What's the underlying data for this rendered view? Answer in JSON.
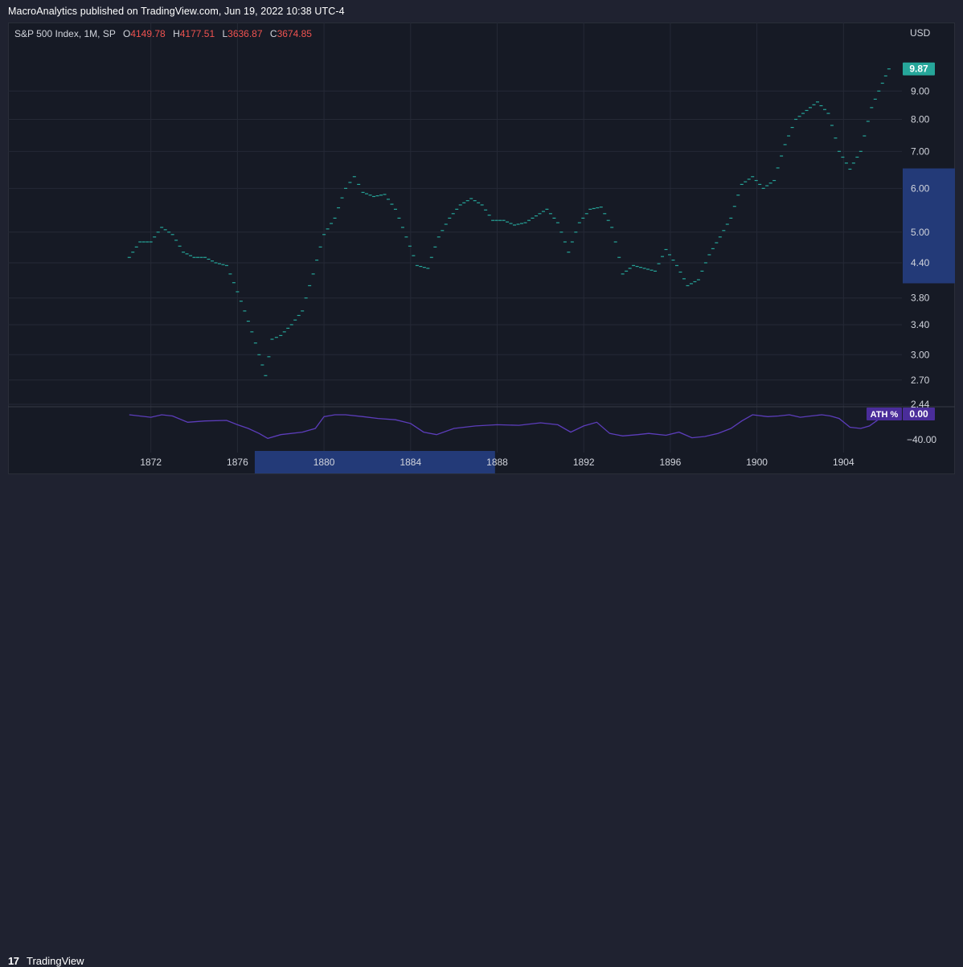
{
  "header": {
    "publish_text": "MacroAnalytics published on TradingView.com, Jun 19, 2022 10:38 UTC-4"
  },
  "legend": {
    "symbol": "S&P 500 Index, 1M, SP",
    "open_label": "O",
    "open_value": "4149.78",
    "high_label": "H",
    "high_value": "4177.51",
    "low_label": "L",
    "low_value": "3636.87",
    "close_label": "C",
    "close_value": "3674.85"
  },
  "footer": {
    "brand_logo": "17",
    "brand_name": "TradingView"
  },
  "colors": {
    "background": "#161a25",
    "price": "#26a69a",
    "ath": "#5c3dbb",
    "grid": "#252936",
    "text": "#d1d4dc",
    "price_label_bg": "#26a69a",
    "ath_label_bg": "#4a2d9a",
    "range_highlight": "#233a78"
  },
  "chart_data": [
    {
      "type": "line",
      "style": "dashes",
      "currency": "USD",
      "scale": "log",
      "last_value_label": "9.87",
      "y_ticks": [
        "2.44",
        "2.70",
        "3.00",
        "3.40",
        "3.80",
        "4.40",
        "5.00",
        "6.00",
        "7.00",
        "8.00",
        "9.00"
      ],
      "ylim": [
        2.44,
        10.3
      ],
      "x_ticks": [
        "1872",
        "1876",
        "1880",
        "1884",
        "1888",
        "1892",
        "1896",
        "1900",
        "1904"
      ],
      "xlim": [
        1865.4,
        1906.7
      ],
      "x_highlight": [
        1876.8,
        1887.9
      ],
      "y_highlight": [
        4.04,
        6.52
      ],
      "series": [
        {
          "x": [
            1871.0,
            1871.5,
            1872.0,
            1872.5,
            1873.0,
            1873.5,
            1874.0,
            1874.5,
            1875.0,
            1875.5,
            1876.0,
            1876.5,
            1877.0,
            1877.3,
            1877.6,
            1878.0,
            1878.5,
            1879.0,
            1879.5,
            1880.0,
            1880.5,
            1881.0,
            1881.4,
            1881.8,
            1882.3,
            1882.8,
            1883.3,
            1883.8,
            1884.3,
            1884.8,
            1885.3,
            1885.8,
            1886.3,
            1886.8,
            1887.3,
            1887.8,
            1888.3,
            1888.8,
            1889.3,
            1889.8,
            1890.3,
            1890.8,
            1891.3,
            1891.8,
            1892.3,
            1892.8,
            1893.3,
            1893.8,
            1894.3,
            1894.8,
            1895.3,
            1895.8,
            1896.3,
            1896.8,
            1897.3,
            1897.8,
            1898.3,
            1898.8,
            1899.3,
            1899.8,
            1900.3,
            1900.8,
            1901.3,
            1901.8,
            1902.3,
            1902.8,
            1903.3,
            1903.8,
            1904.3,
            1904.8,
            1905.3,
            1905.8,
            1906.1
          ],
          "y": [
            4.5,
            4.8,
            4.8,
            5.1,
            4.95,
            4.6,
            4.5,
            4.5,
            4.4,
            4.35,
            3.9,
            3.45,
            3.0,
            2.75,
            3.2,
            3.25,
            3.4,
            3.6,
            4.2,
            4.95,
            5.3,
            6.0,
            6.3,
            5.9,
            5.8,
            5.85,
            5.5,
            4.9,
            4.35,
            4.3,
            4.9,
            5.3,
            5.6,
            5.75,
            5.6,
            5.25,
            5.25,
            5.15,
            5.2,
            5.35,
            5.5,
            5.2,
            4.6,
            5.2,
            5.5,
            5.55,
            5.1,
            4.2,
            4.35,
            4.3,
            4.25,
            4.65,
            4.35,
            4.0,
            4.1,
            4.55,
            4.9,
            5.3,
            6.1,
            6.3,
            6.0,
            6.2,
            7.2,
            8.0,
            8.3,
            8.6,
            8.2,
            7.0,
            6.5,
            7.0,
            8.4,
            9.3,
            9.87
          ]
        }
      ]
    },
    {
      "type": "area",
      "name": "ATH %",
      "value_label": "0.00",
      "y_ticks": [
        "0.00",
        "−40.00"
      ],
      "ylim": [
        -44,
        0
      ],
      "series": [
        {
          "x": [
            1871.0,
            1872.0,
            1872.5,
            1873.0,
            1873.7,
            1874.5,
            1875.5,
            1876.0,
            1876.5,
            1877.0,
            1877.4,
            1878.0,
            1879.0,
            1879.6,
            1880.0,
            1880.5,
            1881.0,
            1881.8,
            1882.5,
            1883.3,
            1884.0,
            1884.6,
            1885.2,
            1886.0,
            1887.0,
            1888.0,
            1889.0,
            1890.0,
            1890.8,
            1891.4,
            1892.0,
            1892.6,
            1893.2,
            1893.8,
            1894.5,
            1895.0,
            1895.8,
            1896.4,
            1897.0,
            1897.6,
            1898.2,
            1898.8,
            1899.3,
            1899.8,
            1900.5,
            1901.0,
            1901.5,
            1902.0,
            1902.5,
            1903.0,
            1903.4,
            1903.8,
            1904.3,
            1904.8,
            1905.2,
            1905.6,
            1906.1
          ],
          "y": [
            0,
            -4,
            0,
            -2,
            -12,
            -10,
            -9,
            -16,
            -22,
            -30,
            -38,
            -32,
            -28,
            -22,
            -3,
            0,
            0,
            -3,
            -6,
            -8,
            -14,
            -28,
            -32,
            -22,
            -18,
            -16,
            -17,
            -13,
            -16,
            -28,
            -18,
            -12,
            -30,
            -34,
            -32,
            -30,
            -33,
            -28,
            -37,
            -35,
            -30,
            -22,
            -10,
            0,
            -3,
            -2,
            0,
            -4,
            -2,
            0,
            -2,
            -6,
            -20,
            -22,
            -18,
            -8,
            0
          ]
        }
      ]
    }
  ]
}
